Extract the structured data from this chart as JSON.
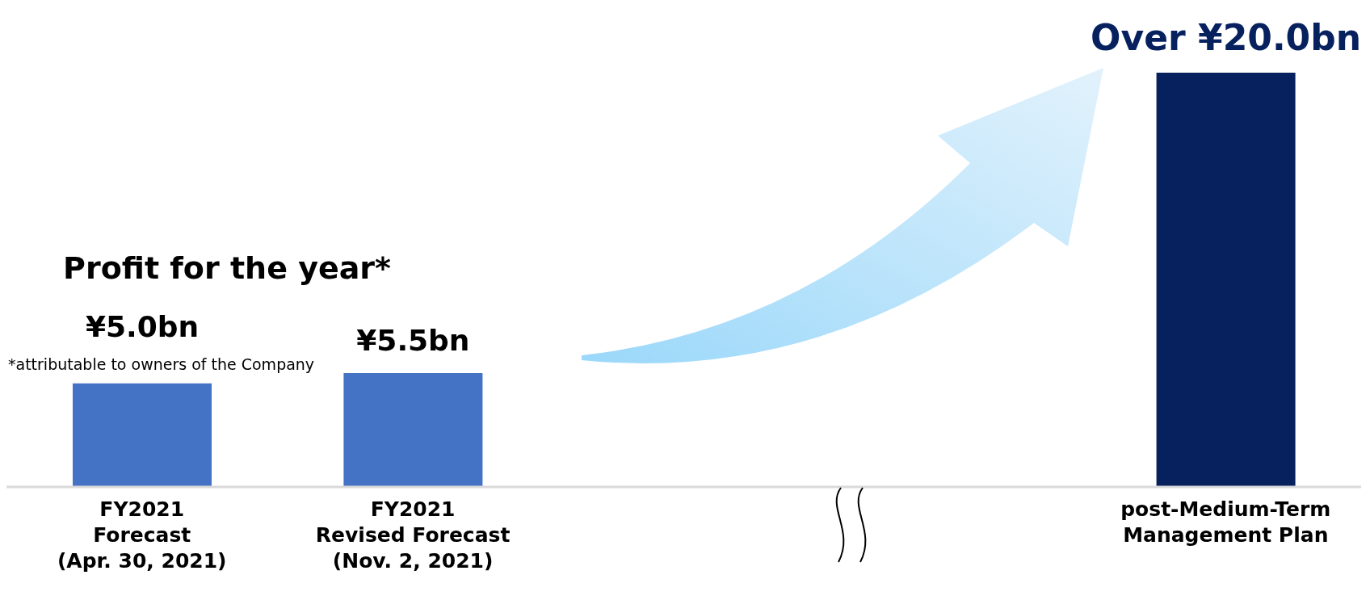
{
  "chart_data": {
    "type": "bar",
    "title": "Profit for the year*",
    "categories": [
      "FY2021\nForecast\n(Apr. 30, 2021)",
      "FY2021\nRevised Forecast\n(Nov. 2, 2021)",
      null,
      null,
      "post-Medium-Term\nManagement Plan"
    ],
    "values": [
      5.0,
      5.5,
      null,
      null,
      20.0
    ],
    "colors": [
      "#4472c4",
      "#4472c4",
      null,
      null,
      "#06215e"
    ],
    "value_labels": [
      "¥5.0bn",
      "¥5.5bn",
      null,
      null,
      "Over ¥20.0bn"
    ],
    "ylim": [
      0,
      20
    ],
    "annotations": [
      "*attributable to owners of the Company"
    ],
    "grid": false,
    "legend": false
  }
}
